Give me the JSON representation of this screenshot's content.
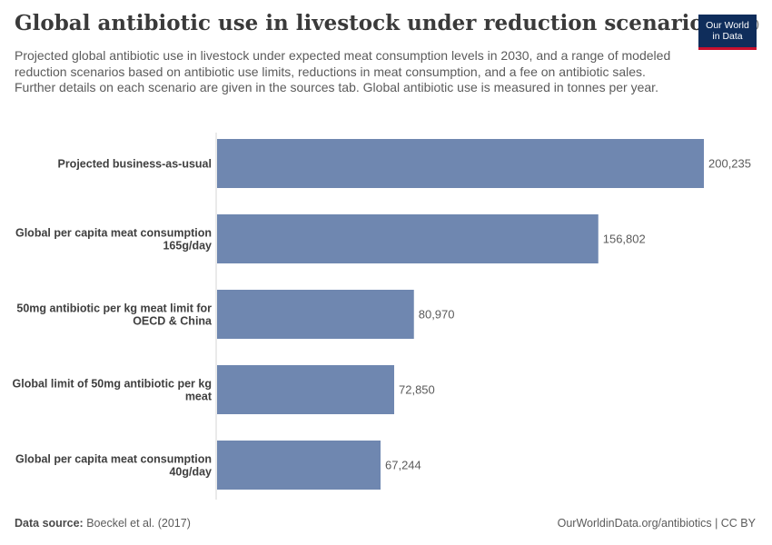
{
  "header": {
    "title": "Global antibiotic use in livestock under reduction scenarios",
    "year": "2030",
    "subtitle": "Projected global antibiotic use in livestock under expected meat consumption levels in 2030, and a range of modeled reduction scenarios based on antibiotic use limits, reductions in meat consumption, and a fee on antibiotic sales. Further details on each scenario are given in the sources tab. Global antibiotic use is measured in tonnes per year."
  },
  "logo": {
    "line1": "Our World",
    "line2": "in Data"
  },
  "footer": {
    "source_label": "Data source:",
    "source_text": "Boeckel et al. (2017)",
    "right_text": "OurWorldinData.org/antibiotics | CC BY"
  },
  "colors": {
    "bar": "#6f87b0",
    "axis": "#d6d6d6",
    "logo_bg": "#0f2d5b",
    "logo_accent": "#c8102e"
  },
  "chart_data": {
    "type": "bar",
    "orientation": "horizontal",
    "categories": [
      [
        "Projected business-as-usual"
      ],
      [
        "Global per capita meat consumption",
        "165g/day"
      ],
      [
        "50mg antibiotic per kg meat limit for",
        "OECD & China"
      ],
      [
        "Global limit of 50mg antibiotic per kg",
        "meat"
      ],
      [
        "Global per capita meat consumption",
        "40g/day"
      ]
    ],
    "values": [
      200235,
      156802,
      80970,
      72850,
      67244
    ],
    "value_labels": [
      "200,235",
      "156,802",
      "80,970",
      "72,850",
      "67,244"
    ],
    "unit": "tonnes per year",
    "xlim": [
      0,
      200235
    ]
  }
}
